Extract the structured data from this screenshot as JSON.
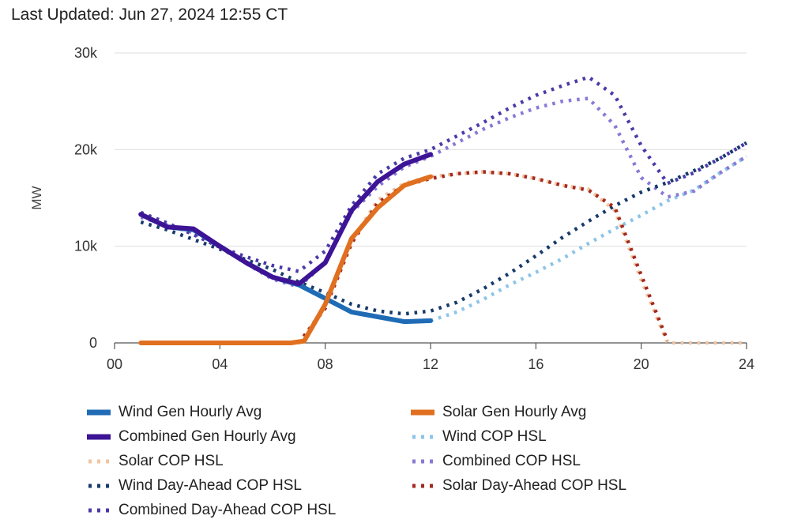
{
  "last_updated": "Last Updated: Jun 27, 2024 12:55 CT",
  "chart_data": {
    "type": "line",
    "ylabel": "MW",
    "xlabel": "",
    "xlim": [
      0,
      24
    ],
    "ylim": [
      0,
      30000
    ],
    "x_ticks": [
      "00",
      "04",
      "08",
      "12",
      "16",
      "20",
      "24"
    ],
    "y_ticks": [
      "0",
      "10k",
      "20k",
      "30k"
    ],
    "grid": "horizontal",
    "legend_position": "bottom",
    "series": [
      {
        "name": "Wind Gen Hourly Avg",
        "style": "solid",
        "color": "#1f6bb5",
        "points": [
          [
            1,
            13300
          ],
          [
            2,
            12000
          ],
          [
            3,
            11700
          ],
          [
            4,
            10000
          ],
          [
            5,
            8300
          ],
          [
            6,
            6800
          ],
          [
            7,
            6000
          ],
          [
            8,
            4600
          ],
          [
            9,
            3200
          ],
          [
            10,
            2700
          ],
          [
            11,
            2200
          ],
          [
            12,
            2300
          ]
        ]
      },
      {
        "name": "Solar Gen Hourly Avg",
        "style": "solid",
        "color": "#e07020",
        "points": [
          [
            1,
            0
          ],
          [
            2,
            0
          ],
          [
            3,
            0
          ],
          [
            4,
            0
          ],
          [
            5,
            0
          ],
          [
            6,
            0
          ],
          [
            6.7,
            0
          ],
          [
            7.2,
            200
          ],
          [
            8,
            4000
          ],
          [
            9,
            10800
          ],
          [
            10,
            14000
          ],
          [
            11,
            16300
          ],
          [
            12,
            17200
          ]
        ]
      },
      {
        "name": "Combined Gen Hourly Avg",
        "style": "solid",
        "color": "#3d1496",
        "points": [
          [
            1,
            13300
          ],
          [
            2,
            12000
          ],
          [
            3,
            11800
          ],
          [
            4,
            10000
          ],
          [
            5,
            8300
          ],
          [
            6,
            6800
          ],
          [
            7,
            6100
          ],
          [
            8,
            8300
          ],
          [
            9,
            13700
          ],
          [
            10,
            16700
          ],
          [
            11,
            18500
          ],
          [
            12,
            19500
          ]
        ]
      },
      {
        "name": "Wind COP HSL",
        "style": "dotted",
        "color": "#8cc4e8",
        "points": [
          [
            12,
            2300
          ],
          [
            13,
            3200
          ],
          [
            14,
            4500
          ],
          [
            15,
            6000
          ],
          [
            16,
            7300
          ],
          [
            17,
            8700
          ],
          [
            18,
            10300
          ],
          [
            19,
            11800
          ],
          [
            20,
            13200
          ],
          [
            21,
            14700
          ],
          [
            22,
            15800
          ],
          [
            23,
            17600
          ],
          [
            24,
            19300
          ]
        ]
      },
      {
        "name": "Solar COP HSL",
        "style": "dotted",
        "color": "#f2c4a0",
        "points": [
          [
            1,
            0
          ],
          [
            7,
            0
          ],
          [
            8,
            3800
          ],
          [
            9,
            10500
          ],
          [
            10,
            14800
          ],
          [
            11,
            16500
          ],
          [
            12,
            17200
          ],
          [
            13,
            17500
          ],
          [
            14,
            17700
          ],
          [
            15,
            17500
          ],
          [
            16,
            17000
          ],
          [
            17,
            16300
          ],
          [
            18,
            15900
          ],
          [
            19,
            13700
          ],
          [
            20,
            6500
          ],
          [
            21,
            0
          ],
          [
            22,
            0
          ],
          [
            24,
            0
          ]
        ]
      },
      {
        "name": "Combined COP HSL",
        "style": "dotted",
        "color": "#8a79d6",
        "points": [
          [
            1,
            13000
          ],
          [
            2,
            12200
          ],
          [
            3,
            11400
          ],
          [
            4,
            10000
          ],
          [
            5,
            8200
          ],
          [
            6,
            6600
          ],
          [
            7,
            5800
          ],
          [
            8,
            8300
          ],
          [
            9,
            13500
          ],
          [
            10,
            16200
          ],
          [
            11,
            18200
          ],
          [
            12,
            19300
          ],
          [
            13,
            20700
          ],
          [
            14,
            22100
          ],
          [
            15,
            23300
          ],
          [
            16,
            24300
          ],
          [
            17,
            25000
          ],
          [
            18,
            25300
          ],
          [
            19,
            22500
          ],
          [
            20,
            17100
          ],
          [
            21,
            15100
          ],
          [
            22,
            15700
          ],
          [
            23,
            17600
          ],
          [
            24,
            19300
          ]
        ]
      },
      {
        "name": "Wind Day-Ahead COP HSL",
        "style": "dotted",
        "color": "#173a6a",
        "points": [
          [
            1,
            12500
          ],
          [
            2,
            11700
          ],
          [
            3,
            10700
          ],
          [
            4,
            9700
          ],
          [
            5,
            8600
          ],
          [
            6,
            7600
          ],
          [
            7,
            6300
          ],
          [
            8,
            5200
          ],
          [
            9,
            4000
          ],
          [
            10,
            3300
          ],
          [
            11,
            3000
          ],
          [
            12,
            3300
          ],
          [
            13,
            4200
          ],
          [
            14,
            5600
          ],
          [
            15,
            7200
          ],
          [
            16,
            9000
          ],
          [
            17,
            10900
          ],
          [
            18,
            12600
          ],
          [
            19,
            14200
          ],
          [
            20,
            15600
          ],
          [
            21,
            16600
          ],
          [
            22,
            17800
          ],
          [
            23,
            19100
          ],
          [
            24,
            20700
          ]
        ]
      },
      {
        "name": "Solar Day-Ahead COP HSL",
        "style": "dotted",
        "color": "#a32820",
        "points": [
          [
            7,
            0
          ],
          [
            8,
            3600
          ],
          [
            9,
            10300
          ],
          [
            10,
            14500
          ],
          [
            11,
            16300
          ],
          [
            12,
            17000
          ],
          [
            13,
            17500
          ],
          [
            14,
            17700
          ],
          [
            15,
            17500
          ],
          [
            16,
            17000
          ],
          [
            17,
            16300
          ],
          [
            18,
            15800
          ],
          [
            19,
            14000
          ],
          [
            20,
            7000
          ],
          [
            21,
            200
          ]
        ]
      },
      {
        "name": "Combined Day-Ahead COP HSL",
        "style": "dotted",
        "color": "#4a3aa8",
        "points": [
          [
            1,
            13500
          ],
          [
            2,
            12400
          ],
          [
            3,
            11200
          ],
          [
            4,
            9900
          ],
          [
            5,
            8900
          ],
          [
            6,
            8000
          ],
          [
            7,
            7400
          ],
          [
            8,
            9500
          ],
          [
            9,
            14200
          ],
          [
            10,
            17500
          ],
          [
            11,
            19100
          ],
          [
            12,
            20000
          ],
          [
            13,
            21400
          ],
          [
            14,
            22800
          ],
          [
            15,
            24300
          ],
          [
            16,
            25600
          ],
          [
            17,
            26600
          ],
          [
            18,
            27500
          ],
          [
            19,
            25600
          ],
          [
            20,
            20400
          ],
          [
            21,
            16500
          ],
          [
            22,
            17600
          ],
          [
            23,
            19100
          ],
          [
            24,
            20700
          ]
        ]
      }
    ]
  },
  "legend": [
    {
      "label": "Wind Gen Hourly Avg",
      "color": "#1f6bb5",
      "style": "solid"
    },
    {
      "label": "Solar Gen Hourly Avg",
      "color": "#e07020",
      "style": "solid"
    },
    {
      "label": "Combined Gen Hourly Avg",
      "color": "#3d1496",
      "style": "solid"
    },
    {
      "label": "Wind COP HSL",
      "color": "#8cc4e8",
      "style": "dotted"
    },
    {
      "label": "Solar COP HSL",
      "color": "#f2c4a0",
      "style": "dotted"
    },
    {
      "label": "Combined COP HSL",
      "color": "#8a79d6",
      "style": "dotted"
    },
    {
      "label": "Wind Day-Ahead COP HSL",
      "color": "#173a6a",
      "style": "dotted"
    },
    {
      "label": "Solar Day-Ahead COP HSL",
      "color": "#a32820",
      "style": "dotted"
    },
    {
      "label": "Combined Day-Ahead COP HSL",
      "color": "#4a3aa8",
      "style": "dotted"
    }
  ]
}
